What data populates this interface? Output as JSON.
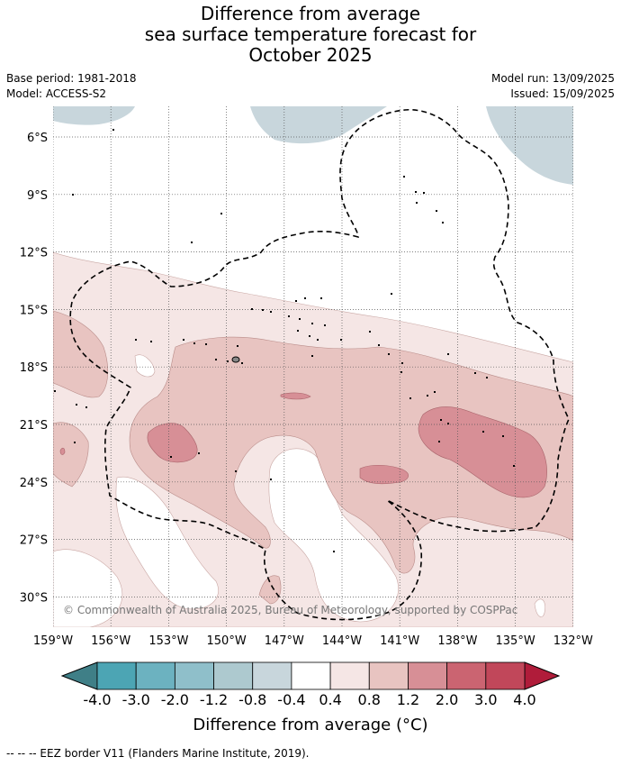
{
  "title": {
    "line1": "Difference from average",
    "line2": "sea surface temperature forecast for",
    "line3": "October 2025"
  },
  "meta": {
    "base_period": "Base period: 1981-2018",
    "model": "Model: ACCESS-S2",
    "model_run": "Model run: 13/09/2025",
    "issued": "Issued: 15/09/2025"
  },
  "map": {
    "lat_labels": [
      "6°S",
      "9°S",
      "12°S",
      "15°S",
      "18°S",
      "21°S",
      "24°S",
      "27°S",
      "30°S"
    ],
    "lon_labels": [
      "159°W",
      "156°W",
      "153°W",
      "150°W",
      "147°W",
      "144°W",
      "141°W",
      "138°W",
      "135°W",
      "132°W"
    ],
    "copyright": "© Commonwealth of Australia 2025, Bureau of Meteorology, supported by COSPPac",
    "land_color": "#c8d6dc"
  },
  "colorbar": {
    "title": "Difference from average (°C)",
    "ticks": [
      "-4.0",
      "-3.0",
      "-2.0",
      "-1.2",
      "-0.8",
      "-0.4",
      "0.4",
      "0.8",
      "1.2",
      "2.0",
      "3.0",
      "4.0"
    ],
    "colors": {
      "under": "#3f7f87",
      "bins": [
        "#4ca5b4",
        "#6cb2c0",
        "#8fbfca",
        "#adc9cf",
        "#c8d6dc",
        "#ffffff",
        "#f5e6e5",
        "#e8c4c1",
        "#d78f96",
        "#cb6471",
        "#c1475a"
      ],
      "over": "#b01c3a"
    }
  },
  "footer": {
    "legend_text": "--  --  -- EEZ border V11 (Flanders Marine Institute, 2019)."
  }
}
